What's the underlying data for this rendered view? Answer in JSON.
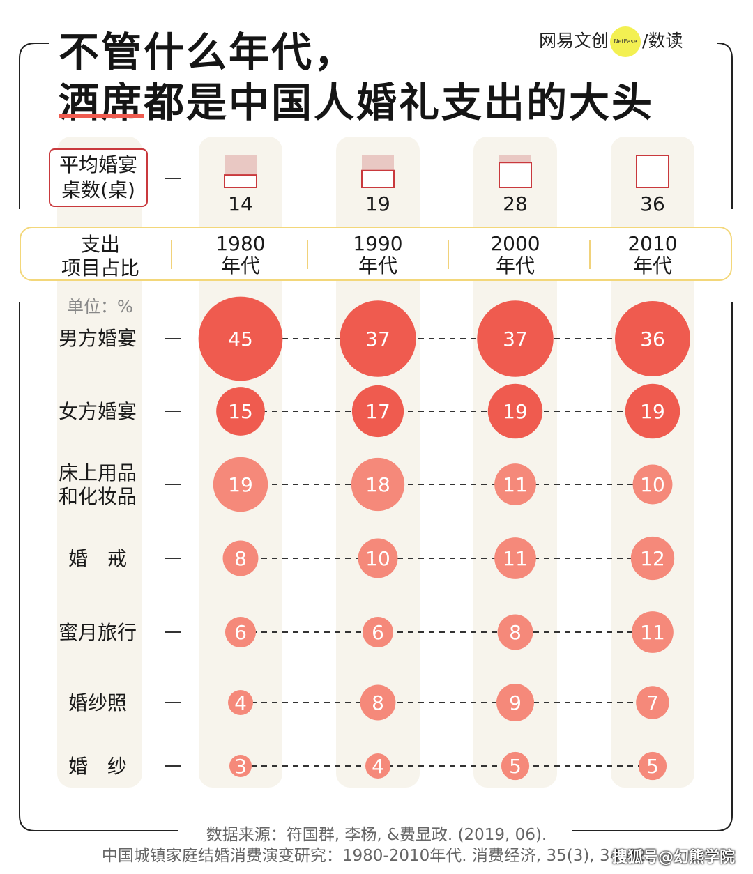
{
  "title": {
    "line1": "不管什么年代，",
    "line2": "酒席都是中国人婚礼支出的大头"
  },
  "brand": {
    "name": "网易文创",
    "dot_text": "NetEase",
    "slash": "/",
    "sub": "数读"
  },
  "tables_label": {
    "line1": "平均婚宴",
    "line2": "桌数(桌)"
  },
  "category_label": {
    "line1": "支出",
    "line2": "项目占比"
  },
  "unit": "单位：%",
  "eras": [
    {
      "year": "1980",
      "suffix": "年代"
    },
    {
      "year": "1990",
      "suffix": "年代"
    },
    {
      "year": "2000",
      "suffix": "年代"
    },
    {
      "year": "2010",
      "suffix": "年代"
    }
  ],
  "row_labels": [
    {
      "line1": "男方婚宴",
      "line2": ""
    },
    {
      "line1": "女方婚宴",
      "line2": ""
    },
    {
      "line1": "床上用品",
      "line2": "和化妆品"
    },
    {
      "line1": "婚　戒",
      "line2": ""
    },
    {
      "line1": "蜜月旅行",
      "line2": ""
    },
    {
      "line1": "婚纱照",
      "line2": ""
    },
    {
      "line1": "婚　纱",
      "line2": ""
    }
  ],
  "chart_data": {
    "type": "bubble-matrix",
    "categories": [
      "1980年代",
      "1990年代",
      "2000年代",
      "2010年代"
    ],
    "avg_banquet_tables": [
      14,
      19,
      28,
      36
    ],
    "series": [
      {
        "name": "男方婚宴",
        "values": [
          45,
          37,
          37,
          36
        ]
      },
      {
        "name": "女方婚宴",
        "values": [
          15,
          17,
          19,
          19
        ]
      },
      {
        "name": "床上用品和化妆品",
        "values": [
          19,
          18,
          11,
          10
        ]
      },
      {
        "name": "婚戒",
        "values": [
          8,
          10,
          11,
          12
        ]
      },
      {
        "name": "蜜月旅行",
        "values": [
          6,
          6,
          8,
          11
        ]
      },
      {
        "name": "婚纱照",
        "values": [
          4,
          8,
          9,
          7
        ]
      },
      {
        "name": "婚纱",
        "values": [
          3,
          4,
          5,
          5
        ]
      }
    ],
    "unit": "%",
    "colors": {
      "dark": "#ef5b4f",
      "light": "#f5897a",
      "table_fill": "#e9c8c3",
      "table_stroke": "#c9393d"
    }
  },
  "source": {
    "line1": "数据来源：符国群, 李杨, &费显政. (2019, 06).",
    "line2": "中国城镇家庭结婚消费演变研究：1980-2010年代. 消费经济, 35(3), 34-42."
  },
  "watermark": "搜狐号@幻熊学院"
}
